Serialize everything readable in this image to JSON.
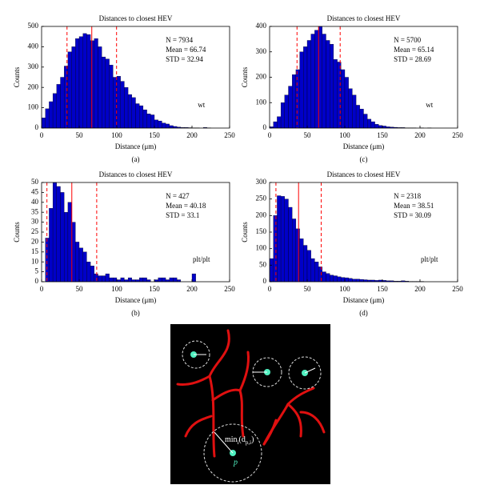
{
  "chart_data": [
    {
      "type": "histogram",
      "title": "Distances to closest HEV",
      "xlabel": "Distance (μm)",
      "ylabel": "Counts",
      "caption": "(a)",
      "color": "#0000c8",
      "vline_color": "#ff0000",
      "annotations": [
        "N = 7934",
        "Mean = 66.74",
        "STD = 32.94"
      ],
      "label": "wt",
      "bins": [
        0,
        5,
        10,
        15,
        20,
        25,
        30,
        35,
        40,
        45,
        50,
        55,
        60,
        65,
        70,
        75,
        80,
        85,
        90,
        95,
        100,
        105,
        110,
        115,
        120,
        125,
        130,
        135,
        140,
        145,
        150,
        155,
        160,
        165,
        170,
        175,
        180,
        185,
        190,
        195,
        200,
        205,
        210,
        215,
        220,
        225
      ],
      "values": [
        50,
        95,
        130,
        170,
        215,
        250,
        305,
        375,
        400,
        440,
        450,
        465,
        460,
        430,
        440,
        400,
        350,
        340,
        310,
        250,
        255,
        230,
        200,
        165,
        150,
        120,
        110,
        90,
        70,
        65,
        40,
        35,
        25,
        20,
        12,
        8,
        5,
        3,
        3,
        2,
        1,
        1,
        0,
        3,
        1
      ],
      "vlines": [
        {
          "value": 33.8,
          "style": "dashed"
        },
        {
          "value": 66.74,
          "style": "solid"
        },
        {
          "value": 99.68,
          "style": "dashed"
        }
      ],
      "xlim": [
        0,
        250
      ],
      "xticks": [
        0,
        50,
        100,
        150,
        200,
        250
      ],
      "ylim": [
        0,
        500
      ],
      "yticks": [
        0,
        100,
        200,
        300,
        400,
        500
      ]
    },
    {
      "type": "histogram",
      "title": "Distances to closest HEV",
      "xlabel": "Distance (μm)",
      "ylabel": "Counts",
      "caption": "(c)",
      "color": "#0000c8",
      "vline_color": "#ff0000",
      "annotations": [
        "N = 5700",
        "Mean = 65.14",
        "STD = 28.69"
      ],
      "label": "wt",
      "bins": [
        0,
        5,
        10,
        15,
        20,
        25,
        30,
        35,
        40,
        45,
        50,
        55,
        60,
        65,
        70,
        75,
        80,
        85,
        90,
        95,
        100,
        105,
        110,
        115,
        120,
        125,
        130,
        135,
        140,
        145,
        150,
        155,
        160,
        165,
        170,
        175,
        180,
        185,
        190,
        195,
        200,
        205,
        210,
        215
      ],
      "values": [
        5,
        25,
        45,
        100,
        130,
        165,
        210,
        230,
        300,
        320,
        345,
        370,
        385,
        400,
        370,
        345,
        330,
        270,
        260,
        230,
        200,
        155,
        130,
        90,
        75,
        55,
        35,
        25,
        15,
        10,
        8,
        5,
        4,
        3,
        2,
        2,
        1,
        1,
        1,
        0,
        1,
        0,
        1
      ],
      "vlines": [
        {
          "value": 36.45,
          "style": "dashed"
        },
        {
          "value": 65.14,
          "style": "solid"
        },
        {
          "value": 93.83,
          "style": "dashed"
        }
      ],
      "xlim": [
        0,
        250
      ],
      "xticks": [
        0,
        50,
        100,
        150,
        200,
        250
      ],
      "ylim": [
        0,
        400
      ],
      "yticks": [
        0,
        100,
        200,
        300,
        400
      ]
    },
    {
      "type": "histogram",
      "title": "Distances to closest HEV",
      "xlabel": "Distance (μm)",
      "ylabel": "Counts",
      "caption": "(b)",
      "color": "#0000c8",
      "vline_color": "#ff0000",
      "annotations": [
        "N = 427",
        "Mean = 40.18",
        "STD = 33.1"
      ],
      "label": "plt/plt",
      "bins": [
        5,
        10,
        15,
        20,
        25,
        30,
        35,
        40,
        45,
        50,
        55,
        60,
        65,
        70,
        75,
        80,
        85,
        90,
        95,
        100,
        105,
        110,
        115,
        120,
        125,
        130,
        135,
        140,
        145,
        150,
        155,
        160,
        165,
        170,
        175,
        180,
        185,
        190,
        195,
        200,
        205
      ],
      "values": [
        22,
        37,
        50,
        48,
        45,
        35,
        40,
        30,
        20,
        17,
        15,
        10,
        8,
        4,
        3,
        3,
        4,
        2,
        2,
        1,
        2,
        1,
        2,
        1,
        1,
        2,
        2,
        1,
        0,
        1,
        2,
        2,
        1,
        2,
        2,
        1,
        0,
        0,
        0,
        4
      ],
      "vlines": [
        {
          "value": 7.08,
          "style": "dashed"
        },
        {
          "value": 40.18,
          "style": "solid"
        },
        {
          "value": 73.28,
          "style": "dashed"
        }
      ],
      "xlim": [
        0,
        250
      ],
      "xticks": [
        0,
        50,
        100,
        150,
        200,
        250
      ],
      "ylim": [
        0,
        50
      ],
      "yticks": [
        0,
        5,
        10,
        15,
        20,
        25,
        30,
        35,
        40,
        45,
        50
      ]
    },
    {
      "type": "histogram",
      "title": "Distances to closest HEV",
      "xlabel": "Distance (μm)",
      "ylabel": "Counts",
      "caption": "(d)",
      "color": "#0000c8",
      "vline_color": "#ff0000",
      "annotations": [
        "N = 2318",
        "Mean = 38.51",
        "STD = 30.09"
      ],
      "label": "plt/plt",
      "bins": [
        0,
        5,
        10,
        15,
        20,
        25,
        30,
        35,
        40,
        45,
        50,
        55,
        60,
        65,
        70,
        75,
        80,
        85,
        90,
        95,
        100,
        105,
        110,
        115,
        120,
        125,
        130,
        135,
        140,
        145,
        150,
        155,
        160,
        165,
        170,
        175,
        180,
        185,
        190,
        195,
        200,
        205
      ],
      "values": [
        70,
        200,
        260,
        258,
        250,
        225,
        190,
        160,
        130,
        110,
        95,
        70,
        60,
        45,
        30,
        25,
        20,
        18,
        15,
        13,
        12,
        10,
        8,
        8,
        7,
        6,
        5,
        5,
        4,
        5,
        4,
        3,
        3,
        2,
        2,
        3,
        2,
        1,
        1,
        1,
        1
      ],
      "vlines": [
        {
          "value": 8.42,
          "style": "dashed"
        },
        {
          "value": 38.51,
          "style": "solid"
        },
        {
          "value": 68.6,
          "style": "dashed"
        }
      ],
      "xlim": [
        0,
        250
      ],
      "xticks": [
        0,
        50,
        100,
        150,
        200,
        250
      ],
      "ylim": [
        0,
        300
      ],
      "yticks": [
        0,
        50,
        100,
        150,
        200,
        250,
        300
      ]
    }
  ],
  "diagram": {
    "label_parts": [
      "min",
      "i",
      "(d",
      "p,i",
      ")"
    ],
    "point_label": "p"
  }
}
